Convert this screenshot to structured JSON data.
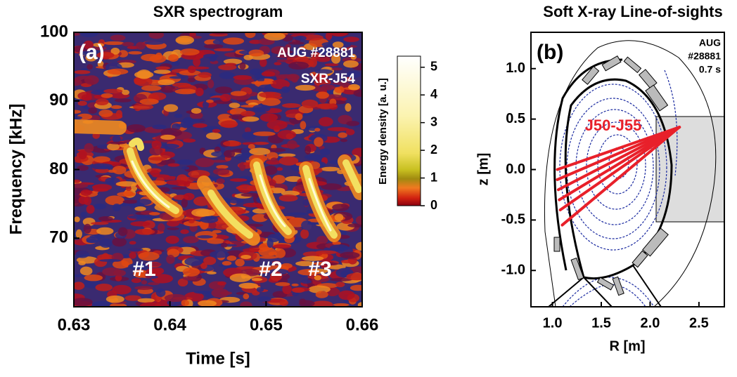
{
  "chart_data": [
    {
      "type": "heatmap",
      "title": "SXR spectrogram",
      "panel_label": "(a)",
      "x_label": "Time [s]",
      "y_label": "Frequency [kHz]",
      "xlim": [
        0.63,
        0.66
      ],
      "xticks": [
        0.63,
        0.64,
        0.65,
        0.66
      ],
      "ylim": [
        60,
        100
      ],
      "yticks": [
        70,
        80,
        90,
        100
      ],
      "annotations": [
        "AUG #28881",
        "SXR-J54"
      ],
      "mode_labels": [
        "#1",
        "#2",
        "#3"
      ],
      "colorbar": {
        "label": "Energy density [a. u.]",
        "clim": [
          0,
          5.4
        ],
        "ticks": [
          0,
          1,
          2,
          3,
          4,
          5
        ]
      }
    },
    {
      "type": "sightlines",
      "title": "Soft X-ray Line-of-sights",
      "panel_label": "(b)",
      "x_label": "R [m]",
      "y_label": "z [m]",
      "xlim": [
        0.78,
        2.76
      ],
      "xticks": [
        {
          "value": 1.0,
          "label": "1.0"
        },
        1.5,
        {
          "value": 2.0,
          "label": "2.0"
        },
        2.5
      ],
      "ylim": [
        -1.36,
        1.36
      ],
      "yticks": [
        {
          "value": 1.0,
          "label": "1.0"
        },
        0.5,
        {
          "value": 0.0,
          "label": "0.0"
        },
        -0.5,
        {
          "value": -1.0,
          "label": "-1.0"
        }
      ],
      "annotations": [
        "AUG",
        "#28881",
        "0.7 s"
      ],
      "lines": {
        "label": "J50-J55",
        "color": "#e8202a",
        "x0": 2.3,
        "y0": 0.42,
        "x_end": [
          1.05,
          1.05,
          1.06,
          1.07,
          1.08,
          1.1
        ],
        "y_end": [
          0.0,
          -0.1,
          -0.2,
          -0.3,
          -0.4,
          -0.55
        ]
      }
    }
  ]
}
